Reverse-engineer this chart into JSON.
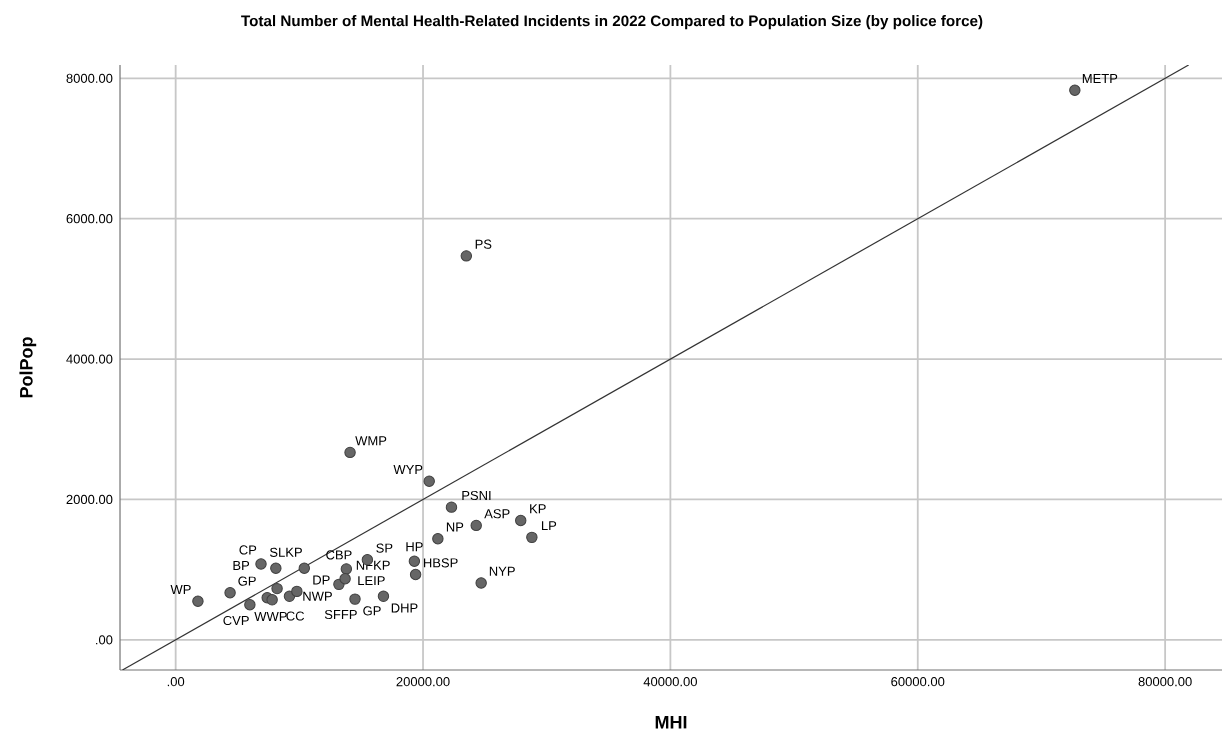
{
  "chart_data": {
    "type": "scatter",
    "title": "Total Number of Mental Health-Related Incidents in 2022 Compared to Population Size (by police force)",
    "xlabel": "MHI",
    "ylabel": "PolPop",
    "xlim": [
      -4500,
      84600
    ],
    "ylim": [
      -430,
      8190
    ],
    "xticks": [
      {
        "value": 0,
        "label": ".00"
      },
      {
        "value": 20000,
        "label": "20000.00"
      },
      {
        "value": 40000,
        "label": "40000.00"
      },
      {
        "value": 60000,
        "label": "60000.00"
      },
      {
        "value": 80000,
        "label": "80000.00"
      }
    ],
    "yticks": [
      {
        "value": 0,
        "label": ".00"
      },
      {
        "value": 2000,
        "label": "2000.00"
      },
      {
        "value": 4000,
        "label": "4000.00"
      },
      {
        "value": 6000,
        "label": "6000.00"
      },
      {
        "value": 8000,
        "label": "8000.00"
      }
    ],
    "grid": true,
    "series": [
      {
        "color": "#666666",
        "marker": "circle",
        "x": [
          1800,
          4400,
          6000,
          6900,
          7400,
          7800,
          8100,
          8200,
          9200,
          9800,
          10400,
          13800,
          13200,
          13700,
          14500,
          15500,
          16800,
          19300,
          19400,
          20500,
          22300,
          24300,
          21200,
          27900,
          28800,
          24700,
          23500,
          14100,
          72700
        ],
        "values": [
          550,
          670,
          500,
          1080,
          600,
          570,
          1020,
          730,
          620,
          690,
          1020,
          1010,
          790,
          870,
          580,
          1140,
          620,
          1120,
          930,
          2260,
          1890,
          1630,
          1440,
          1700,
          1460,
          810,
          5470,
          2670,
          7830
        ]
      },
      {
        "type": "line",
        "marker": "none",
        "color": "#333333",
        "x": [
          -4300,
          81900
        ],
        "values": [
          -430,
          8190
        ]
      }
    ],
    "annotations": [
      {
        "text": "WP",
        "x": 1800,
        "y": 550
      },
      {
        "text": "GP",
        "x": 4400,
        "y": 670
      },
      {
        "text": "WWP",
        "x": 6000,
        "y": 500
      },
      {
        "text": "SLKP",
        "x": 6900,
        "y": 1080
      },
      {
        "text": "CC",
        "x": 7400,
        "y": 600
      },
      {
        "text": "CVP",
        "x": 7800,
        "y": 570
      },
      {
        "text": "CP",
        "x": 8100,
        "y": 1020
      },
      {
        "text": "BP",
        "x": 8200,
        "y": 730
      },
      {
        "text": "NWP",
        "x": 9200,
        "y": 620
      },
      {
        "text": "SFFP",
        "x": 9800,
        "y": 690
      },
      {
        "text": "DP",
        "x": 10400,
        "y": 1020
      },
      {
        "text": "LEIP",
        "x": 13800,
        "y": 1010
      },
      {
        "text": "CBP",
        "x": 13200,
        "y": 790
      },
      {
        "text": "NFKP",
        "x": 13700,
        "y": 870
      },
      {
        "text": "GP",
        "x": 14500,
        "y": 580
      },
      {
        "text": "SP",
        "x": 15500,
        "y": 1140
      },
      {
        "text": "DHP",
        "x": 16800,
        "y": 620
      },
      {
        "text": "HP",
        "x": 19300,
        "y": 1120
      },
      {
        "text": "HBSP",
        "x": 19400,
        "y": 930
      },
      {
        "text": "WYP",
        "x": 20500,
        "y": 2260
      },
      {
        "text": "PSNI",
        "x": 22300,
        "y": 1890
      },
      {
        "text": "ASP",
        "x": 24300,
        "y": 1630
      },
      {
        "text": "NP",
        "x": 21200,
        "y": 1440
      },
      {
        "text": "KP",
        "x": 27900,
        "y": 1700
      },
      {
        "text": "LP",
        "x": 28800,
        "y": 1460
      },
      {
        "text": "NYP",
        "x": 24700,
        "y": 810
      },
      {
        "text": "PS",
        "x": 23500,
        "y": 5470
      },
      {
        "text": "WMP",
        "x": 14100,
        "y": 2670
      },
      {
        "text": "METP",
        "x": 72700,
        "y": 7830
      }
    ]
  }
}
